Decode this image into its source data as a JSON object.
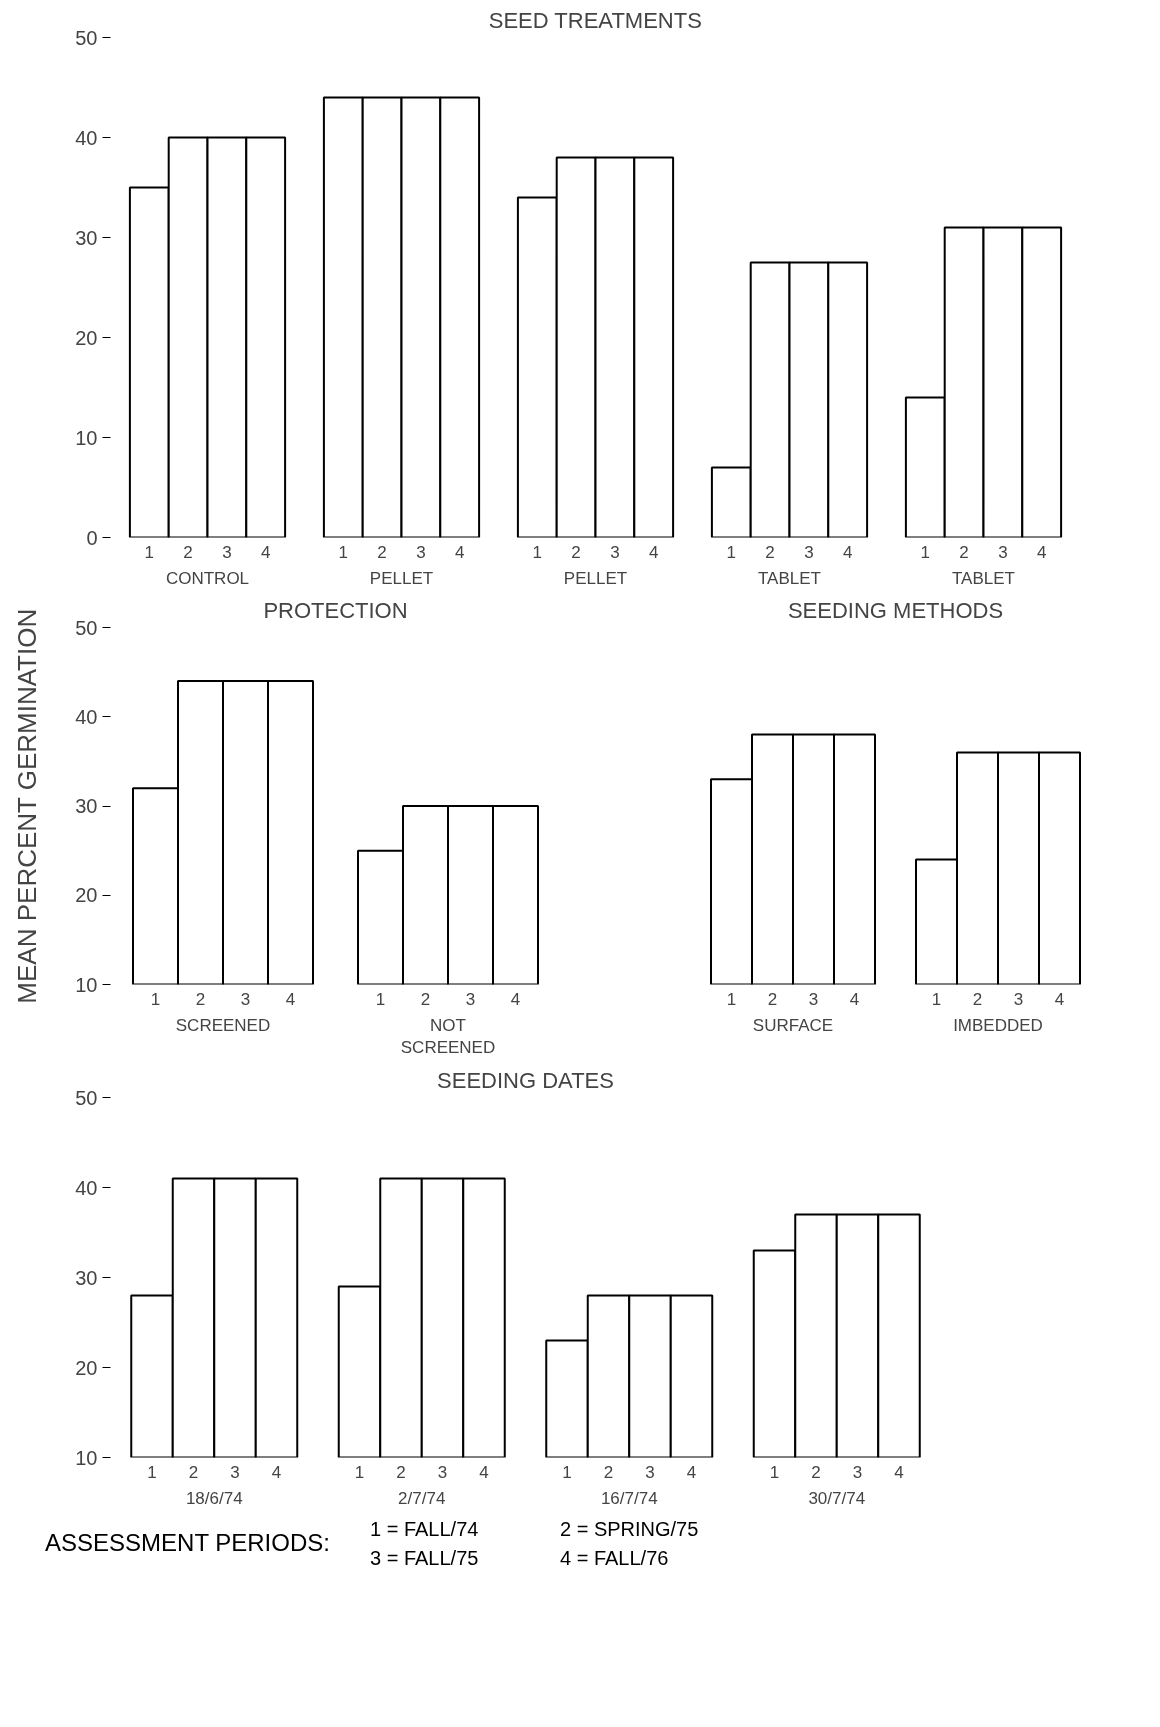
{
  "chart_data": [
    {
      "type": "bar",
      "title": "SEED TREATMENTS",
      "categories": [
        "CONTROL",
        "PELLET",
        "PELLET",
        "TABLET",
        "TABLET"
      ],
      "ylim": [
        0,
        50
      ],
      "yticks": [
        0,
        10,
        20,
        30,
        40,
        50
      ],
      "grid": false,
      "series": [
        {
          "name": "1",
          "color": "#ffffff",
          "values": [
            35,
            44,
            34,
            7,
            14
          ]
        },
        {
          "name": "2",
          "color": "#ffffff",
          "values": [
            40,
            44,
            38,
            27.5,
            31
          ]
        },
        {
          "name": "3",
          "color": "#ffffff",
          "values": [
            40,
            44,
            38,
            27.5,
            31
          ]
        },
        {
          "name": "4",
          "color": "#ffffff",
          "values": [
            40,
            44,
            38,
            27.5,
            31
          ]
        }
      ]
    },
    {
      "type": "bar",
      "title": "PROTECTION",
      "ylabel": "MEAN PERCENT GERMINATION",
      "categories": [
        "SCREENED",
        "NOT SCREENED"
      ],
      "ylim": [
        10,
        50
      ],
      "yticks": [
        10,
        20,
        30,
        40,
        50
      ],
      "grid": false,
      "series": [
        {
          "name": "1",
          "color": "#ffffff",
          "values": [
            32,
            25
          ]
        },
        {
          "name": "2",
          "color": "#ffffff",
          "values": [
            44,
            30
          ]
        },
        {
          "name": "3",
          "color": "#ffffff",
          "values": [
            44,
            30
          ]
        },
        {
          "name": "4",
          "color": "#ffffff",
          "values": [
            44,
            30
          ]
        }
      ]
    },
    {
      "type": "bar",
      "title": "SEEDING METHODS",
      "categories": [
        "SURFACE",
        "IMBEDDED"
      ],
      "ylim": [
        10,
        50
      ],
      "tick_labels": "x",
      "grid": false,
      "series": [
        {
          "name": "1",
          "color": "#ffffff",
          "values": [
            33,
            24
          ]
        },
        {
          "name": "2",
          "color": "#ffffff",
          "values": [
            38,
            36
          ]
        },
        {
          "name": "3",
          "color": "#ffffff",
          "values": [
            38,
            36
          ]
        },
        {
          "name": "4",
          "color": "#ffffff",
          "values": [
            38,
            36
          ]
        }
      ]
    },
    {
      "type": "bar",
      "title": "SEEDING DATES",
      "categories": [
        "18/6/74",
        "2/7/74",
        "16/7/74",
        "30/7/74"
      ],
      "ylim": [
        10,
        50
      ],
      "yticks": [
        10,
        20,
        30,
        40,
        50
      ],
      "grid": false,
      "annotations": [
        "ASSESSMENT PERIODS:",
        "1 = FALL/74",
        "2 = SPRING/75",
        "3 = FALL/75",
        "4 = FALL/76"
      ],
      "series": [
        {
          "name": "1",
          "color": "#ffffff",
          "values": [
            28,
            29,
            23,
            33
          ]
        },
        {
          "name": "2",
          "color": "#ffffff",
          "values": [
            41,
            41,
            28,
            37
          ]
        },
        {
          "name": "3",
          "color": "#ffffff",
          "values": [
            41,
            41,
            28,
            37
          ]
        },
        {
          "name": "4",
          "color": "#ffffff",
          "values": [
            41,
            41,
            28,
            37
          ]
        }
      ]
    }
  ]
}
